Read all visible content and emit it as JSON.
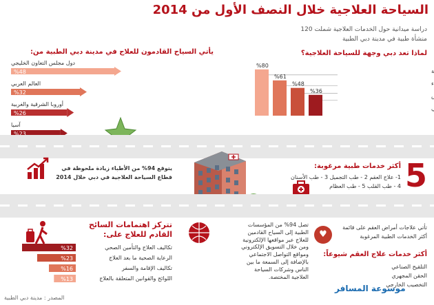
{
  "header": {
    "title": "السياحة العلاجية خلال النصف الأول من 2014",
    "study": "دراسة ميدانية حول الخدمات العلاجية شملت 120",
    "study2": "منشأة طبية في مدينة دبي الطبية"
  },
  "why_dubai": {
    "title": "لماذا تعد دبي وجهة للسياحة العلاجية؟",
    "labels": [
      "توفر رعاية صحية بجودة عالية",
      "خبرة الأطباء",
      "توفر العلاج المتخصص",
      "القرب الجغرافي"
    ]
  },
  "where_from": {
    "title": "يأتي السياح القادمون للعلاج في مدينة دبي الطبية من:",
    "labels": [
      "دول مجلس التعاون الخليجي",
      "العالم العربي",
      "أوروبا الشرقية والغربية",
      "آسيا"
    ]
  },
  "chart_data": [
    {
      "type": "bar",
      "title": "لماذا تعد دبي وجهة للسياحة العلاجية؟",
      "categories": [
        "توفر رعاية صحية بجودة عالية",
        "خبرة الأطباء",
        "توفر العلاج المتخصص",
        "القرب الجغرافي"
      ],
      "values": [
        80,
        61,
        48,
        36
      ],
      "value_labels": [
        "%80",
        "%61",
        "%48",
        "%36"
      ],
      "colors": [
        "#f4a78f",
        "#e0765a",
        "#c9503a",
        "#9e1b1f"
      ]
    },
    {
      "type": "bar",
      "title": "يأتي السياح القادمون للعلاج في مدينة دبي الطبية من:",
      "categories": [
        "دول مجلس التعاون الخليجي",
        "العالم العربي",
        "أوروبا الشرقية والغربية",
        "آسيا"
      ],
      "values": [
        48,
        32,
        26,
        23
      ],
      "value_labels": [
        "%48",
        "%32",
        "%26",
        "%23"
      ],
      "colors": [
        "#f4a78f",
        "#e0765a",
        "#b93030",
        "#9e1b1f"
      ]
    },
    {
      "type": "bar",
      "title": "تتركز اهتمامات السائح القادم للعلاج على:",
      "categories": [
        "تكاليف العلاج والتأمين الصحي",
        "الرعاية الصحية ما بعد العلاج",
        "تكاليف الإقامة والسفر",
        "اللوائح والقوانين المتعلقة بالعلاج"
      ],
      "values": [
        32,
        23,
        16,
        13
      ],
      "value_labels": [
        "%32",
        "%23",
        "%16",
        "%13"
      ],
      "colors": [
        "#9e1b1f",
        "#c9503a",
        "#e0765a",
        "#f4a78f"
      ]
    }
  ],
  "doctors": {
    "text1": "يتوقع 94% من الأطباء زيادة ملحوظة في",
    "text2": "قطاع السياحة العلاجية في دبي خلال 2014"
  },
  "top5": {
    "number": "5",
    "title": "أكثر خدمات طبية مرغوبة:",
    "row1": "1- علاج العقم   2 - طب التجميل   3 - طب الأسنان",
    "row2": "4 - طب القلب   5 - طب العظام"
  },
  "concerns": {
    "title": "تتركز اهتمامات السائح",
    "title2": "القادم للعلاج على:",
    "labels": [
      "تكاليف العلاج والتأمين الصحي",
      "الرعاية الصحية ما بعد العلاج",
      "تكاليف الإقامة والسفر",
      "اللوائح والقوانين المتعلقة بالعلاج"
    ]
  },
  "online": {
    "lines": [
      "تصل 94% من المؤسسات",
      "الطبية إلى السياح القادمين",
      "للعلاج عبر مواقعها الإلكترونية",
      "ومن خلال التسويق الإلكتروني",
      "ومواقع التواصل الاجتماعي",
      "بالإضافة إلى السمعة ما بين",
      "الناس وشركات السياحة",
      "العلاجية المختصة."
    ]
  },
  "infertility": {
    "line1": "تأتي علاجات أمراض العقم على قائمة",
    "line2": "أكثر الخدمات الطبية المرغوبة",
    "title": "أكثر خدمات علاج العقم شيوعاً:",
    "items": [
      "التلقيح الصناعي",
      "الحقن المجهري",
      "التخصيب الخارجي"
    ]
  },
  "source": "المصدر : مدينة دبي الطبية",
  "watermark": "موسوعة المسافر"
}
